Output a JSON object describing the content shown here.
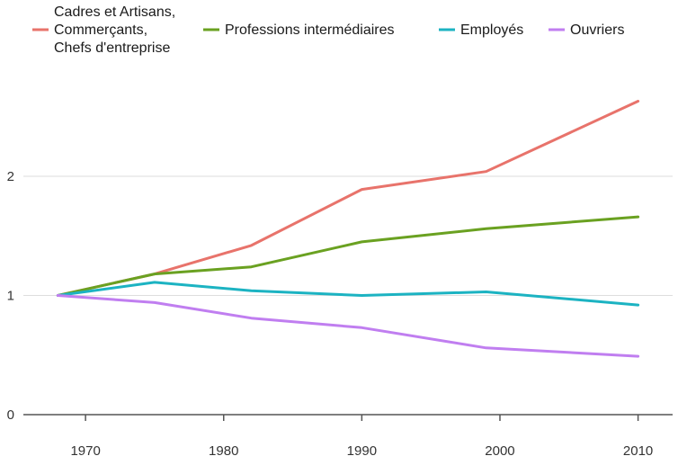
{
  "chart_data": {
    "type": "line",
    "title": "",
    "xlabel": "",
    "ylabel": "",
    "xlim": [
      1965.5,
      2012.5
    ],
    "ylim": [
      0,
      2.8
    ],
    "x_ticks": [
      1970,
      1980,
      1990,
      2000,
      2010
    ],
    "x_tick_labels": [
      "1970",
      "1980",
      "1990",
      "2000",
      "2010"
    ],
    "y_ticks": [
      0,
      1,
      2
    ],
    "y_tick_labels": [
      "0",
      "1",
      "2"
    ],
    "grid": "horizontal",
    "legend_position": "top",
    "x": [
      1968,
      1975,
      1982,
      1990,
      1999,
      2010
    ],
    "series": [
      {
        "name_lines": [
          "Cadres et Artisans,",
          "Commerçants,",
          "Chefs d'entreprise"
        ],
        "color": "#e8736b",
        "values": [
          1.0,
          1.18,
          1.42,
          1.89,
          2.04,
          2.63
        ]
      },
      {
        "name_lines": [
          "Professions intermédiaires"
        ],
        "color": "#6aa121",
        "values": [
          1.0,
          1.18,
          1.24,
          1.45,
          1.56,
          1.66
        ]
      },
      {
        "name_lines": [
          "Employés"
        ],
        "color": "#1cb3c2",
        "values": [
          1.0,
          1.11,
          1.04,
          1.0,
          1.03,
          0.92
        ]
      },
      {
        "name_lines": [
          "Ouvriers"
        ],
        "color": "#c07ef0",
        "values": [
          1.0,
          0.94,
          0.81,
          0.73,
          0.56,
          0.49
        ]
      }
    ]
  }
}
